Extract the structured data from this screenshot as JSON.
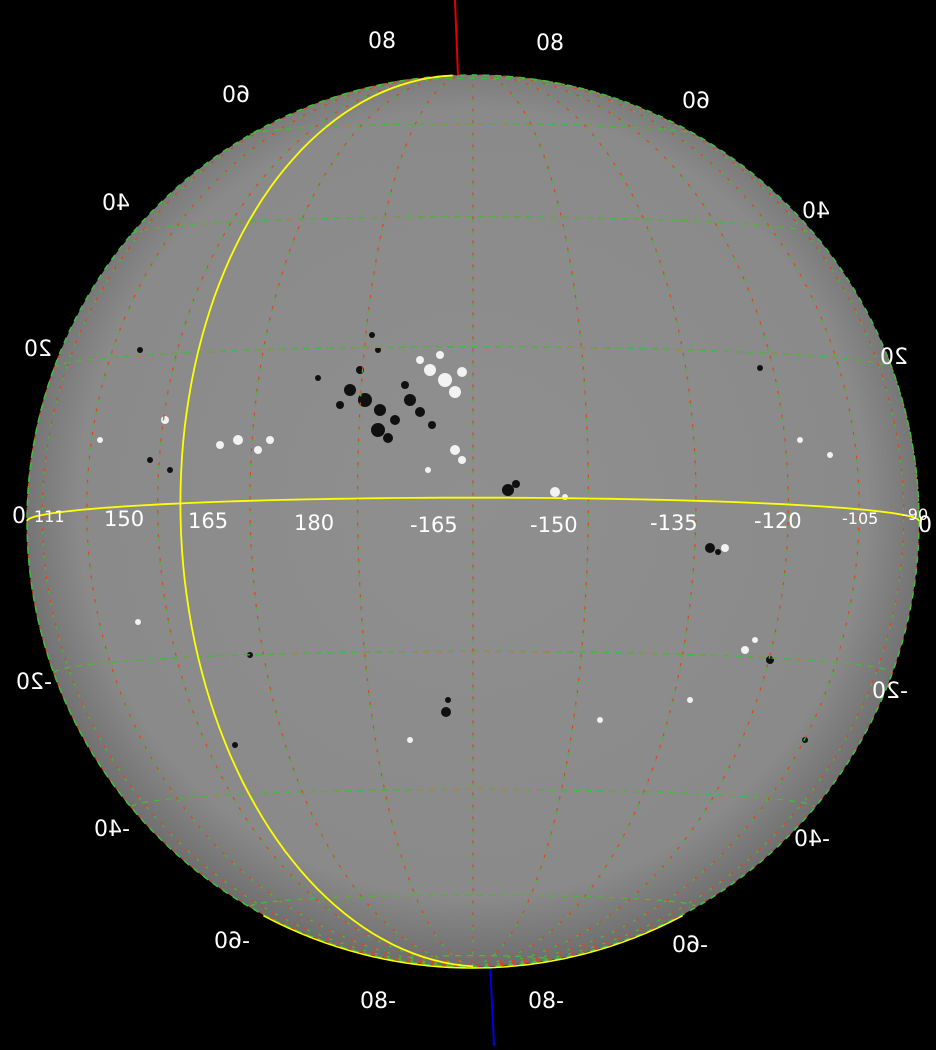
{
  "viewer": {
    "latitude_labels": {
      "left": [
        "80",
        "60",
        "40",
        "20",
        "0",
        "-20",
        "-40",
        "-60",
        "-80"
      ],
      "right": [
        "80",
        "60",
        "40",
        "20",
        "0",
        "-20",
        "-40",
        "-60",
        "-80"
      ]
    },
    "longitude_labels": [
      "111",
      "150",
      "165",
      "180",
      "-165",
      "-150",
      "-135",
      "-120",
      "-105",
      "-90"
    ],
    "colors": {
      "background": "#000000",
      "disk": "#8c8c8c",
      "grid_red": "#e0402a",
      "grid_green": "#3fbf3f",
      "highlight_yellow": "#ffff00",
      "north_axis": "#e00000",
      "south_axis": "#0000e0",
      "label_text": "#ffffff"
    }
  }
}
